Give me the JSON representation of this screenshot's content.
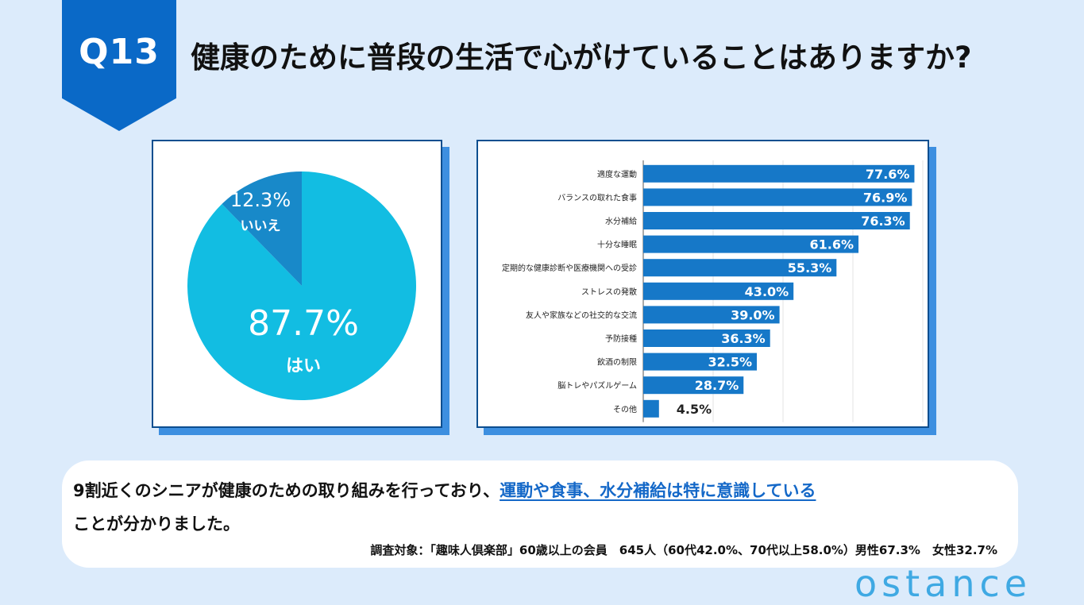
{
  "header": {
    "badge": "Q13",
    "title": "健康のために普段の生活で心がけていることはありますか?"
  },
  "colors": {
    "accent": "#0a69c7",
    "pie_yes": "#12bde2",
    "pie_no": "#1889c9",
    "bar": "#1678c8"
  },
  "chart_data": [
    {
      "type": "pie",
      "slices": [
        {
          "label": "はい",
          "value": 87.7,
          "display": "87.7%"
        },
        {
          "label": "いいえ",
          "value": 12.3,
          "display": "12.3%"
        }
      ]
    },
    {
      "type": "bar",
      "orientation": "horizontal",
      "categories": [
        "適度な運動",
        "バランスの取れた食事",
        "水分補給",
        "十分な睡眠",
        "定期的な健康診断や医療機関への受診",
        "ストレスの発散",
        "友人や家族などの社交的な交流",
        "予防接種",
        "飲酒の制限",
        "脳トレやパズルゲーム",
        "その他"
      ],
      "values": [
        77.6,
        76.9,
        76.3,
        61.6,
        55.3,
        43.0,
        39.0,
        36.3,
        32.5,
        28.7,
        4.5
      ],
      "data_labels": [
        "77.6%",
        "76.9%",
        "76.3%",
        "61.6%",
        "55.3%",
        "43.0%",
        "39.0%",
        "36.3%",
        "32.5%",
        "28.7%",
        "4.5%"
      ],
      "xlim": [
        0,
        80
      ],
      "xticks": [
        "0",
        "20",
        "40",
        "60",
        "80"
      ],
      "grid": true
    }
  ],
  "summary": {
    "line1_plain": "9割近くのシニアが健康のための取り組みを行っており、",
    "line1_highlight": "運動や食事、水分補給は特に意識している",
    "line2": "ことが分かりました。",
    "survey": "調査対象：「趣味人倶楽部」60歳以上の会員　645人（60代42.0%、70代以上58.0%）男性67.3%　女性32.7%"
  },
  "brand": {
    "logo": "ostance"
  }
}
